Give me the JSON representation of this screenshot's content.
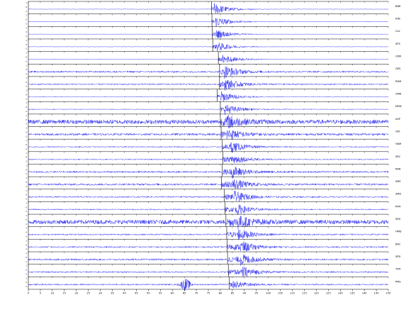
{
  "chart_data": {
    "type": "line",
    "title": "",
    "xlabel": "",
    "ylabel": "",
    "xlim": [
      0,
      90
    ],
    "x_ticks": [
      0,
      3,
      6,
      9,
      12,
      15,
      18,
      21,
      24,
      27,
      30,
      33,
      36,
      39,
      42,
      45,
      48,
      51,
      54,
      57,
      60,
      63,
      66,
      69,
      72,
      75,
      78,
      81,
      84,
      87,
      90
    ],
    "x_tick_labels": [
      "0",
      "5",
      "10",
      "15",
      "20",
      "25",
      "30",
      "35",
      "40",
      "45",
      "50",
      "55",
      "60",
      "65",
      "70",
      "75",
      "80",
      "85",
      "90",
      "95",
      "100",
      "105",
      "110",
      "115",
      "120",
      "125",
      "130",
      "135",
      "140",
      "145",
      "150"
    ],
    "trace_color": "#1c1cf0",
    "pick_color": "#000000",
    "grid": false,
    "traces": [
      {
        "station": "BBR",
        "pick": 45.8,
        "burst": 46.5,
        "amp": 0.85,
        "noise": 0.04
      },
      {
        "station": "KTB",
        "pick": 45.9,
        "burst": 46.8,
        "amp": 0.8,
        "noise": 0.04
      },
      {
        "station": "CLV",
        "pick": 46.0,
        "burst": 46.9,
        "amp": 0.7,
        "noise": 0.03
      },
      {
        "station": "SPS",
        "pick": 46.1,
        "burst": 47.0,
        "amp": 0.75,
        "noise": 0.04
      },
      {
        "station": "CRM",
        "pick": 47.5,
        "burst": 48.5,
        "amp": 0.65,
        "noise": 0.04
      },
      {
        "station": "QPS",
        "pick": 47.8,
        "burst": 49.0,
        "amp": 0.9,
        "noise": 0.12
      },
      {
        "station": "RDM",
        "pick": 47.8,
        "burst": 49.0,
        "amp": 0.85,
        "noise": 0.1
      },
      {
        "station": "GMR",
        "pick": 47.2,
        "burst": 48.0,
        "amp": 0.8,
        "noise": 0.05
      },
      {
        "station": "MDN",
        "pick": 48.0,
        "burst": 49.2,
        "amp": 0.75,
        "noise": 0.06
      },
      {
        "station": "ASP",
        "pick": 48.0,
        "burst": 49.5,
        "amp": 0.9,
        "noise": 0.3
      },
      {
        "station": "GPL",
        "pick": 48.2,
        "burst": 49.6,
        "amp": 0.85,
        "noise": 0.15
      },
      {
        "station": "HAM",
        "pick": 48.5,
        "burst": 50.5,
        "amp": 0.85,
        "noise": 0.08
      },
      {
        "station": "SRC",
        "pick": 48.6,
        "burst": 50.8,
        "amp": 0.8,
        "noise": 0.08
      },
      {
        "station": "RAN",
        "pick": 48.5,
        "burst": 51.0,
        "amp": 0.85,
        "noise": 0.12
      },
      {
        "station": "SME",
        "pick": 48.3,
        "burst": 51.0,
        "amp": 0.85,
        "noise": 0.14
      },
      {
        "station": "SMD",
        "pick": 49.0,
        "burst": 51.5,
        "amp": 0.85,
        "noise": 0.1
      },
      {
        "station": "PFM",
        "pick": 49.2,
        "burst": 52.0,
        "amp": 0.8,
        "noise": 0.08
      },
      {
        "station": "SRX",
        "pick": 49.4,
        "burst": 52.0,
        "amp": 0.9,
        "noise": 0.3
      },
      {
        "station": "HMD",
        "pick": 49.6,
        "burst": 52.5,
        "amp": 0.85,
        "noise": 0.1
      },
      {
        "station": "BAC",
        "pick": 49.7,
        "burst": 53.0,
        "amp": 0.9,
        "noise": 0.1
      },
      {
        "station": "SPD",
        "pick": 49.8,
        "burst": 53.0,
        "amp": 0.85,
        "noise": 0.12
      },
      {
        "station": "TFM",
        "pick": 50.0,
        "burst": 53.5,
        "amp": 0.8,
        "noise": 0.1
      },
      {
        "station": "PMS",
        "pick": 50.2,
        "burst": 51.0,
        "amp": 0.55,
        "noise": 0.1,
        "pre_burst": 39.3,
        "pre_amp": 0.8
      }
    ]
  }
}
